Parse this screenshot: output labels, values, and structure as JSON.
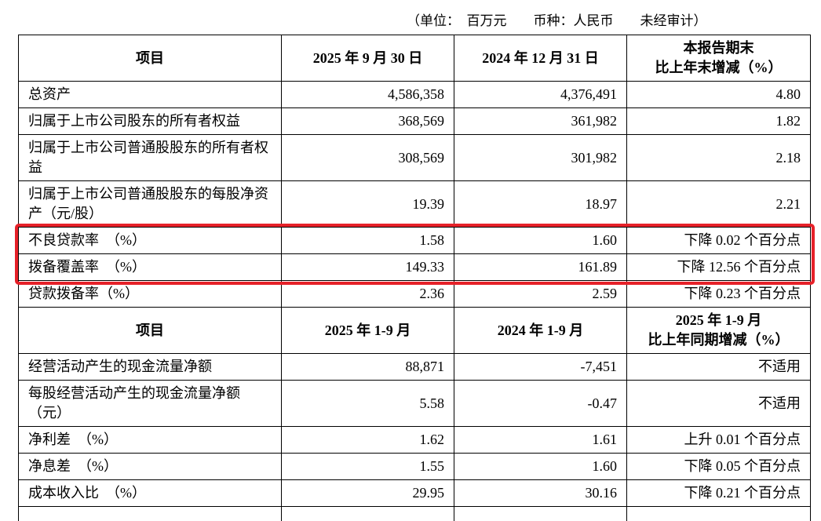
{
  "meta": {
    "unit_note": "（单位：　百万元　　币种：人民币　　未经审计）"
  },
  "highlight_color": "#e62129",
  "balance_table": {
    "header": {
      "col1": "项目",
      "col2": "2025 年 9 月 30 日",
      "col3": "2024 年 12 月 31 日",
      "col4_line1": "本报告期末",
      "col4_line2": "比上年末增减（%）"
    },
    "rows": [
      {
        "name": "总资产",
        "v1": "4,586,358",
        "v2": "4,376,491",
        "chg": "4.80",
        "highlight": false
      },
      {
        "name": "归属于上市公司股东的所有者权益",
        "v1": "368,569",
        "v2": "361,982",
        "chg": "1.82",
        "highlight": false
      },
      {
        "name": "归属于上市公司普通股股东的所有者权益",
        "v1": "308,569",
        "v2": "301,982",
        "chg": "2.18",
        "highlight": false
      },
      {
        "name": "归属于上市公司普通股股东的每股净资产（元/股）",
        "v1": "19.39",
        "v2": "18.97",
        "chg": "2.21",
        "highlight": false
      },
      {
        "name": "不良贷款率　（%）",
        "v1": "1.58",
        "v2": "1.60",
        "chg": "下降 0.02 个百分点",
        "highlight": true
      },
      {
        "name": "拨备覆盖率　（%）",
        "v1": "149.33",
        "v2": "161.89",
        "chg": "下降 12.56 个百分点",
        "highlight": true
      },
      {
        "name": "贷款拨备率（%）",
        "v1": "2.36",
        "v2": "2.59",
        "chg": "下降 0.23 个百分点",
        "highlight": false
      }
    ]
  },
  "flow_table": {
    "header": {
      "col1": "项目",
      "col2": "2025 年 1-9 月",
      "col3": "2024 年 1-9 月",
      "col4_line1": "2025 年 1-9 月",
      "col4_line2": "比上年同期增减（%）"
    },
    "rows": [
      {
        "name": "经营活动产生的现金流量净额",
        "v1": "88,871",
        "v2": "-7,451",
        "chg": "不适用"
      },
      {
        "name": "每股经营活动产生的现金流量净额（元）",
        "v1": "5.58",
        "v2": "-0.47",
        "chg": "不适用"
      },
      {
        "name": "净利差　（%）",
        "v1": "1.62",
        "v2": "1.61",
        "chg": "上升 0.01 个百分点"
      },
      {
        "name": "净息差　（%）",
        "v1": "1.55",
        "v2": "1.60",
        "chg": "下降 0.05 个百分点"
      },
      {
        "name": "成本收入比　（%）",
        "v1": "29.95",
        "v2": "30.16",
        "chg": "下降 0.21 个百分点"
      }
    ]
  }
}
